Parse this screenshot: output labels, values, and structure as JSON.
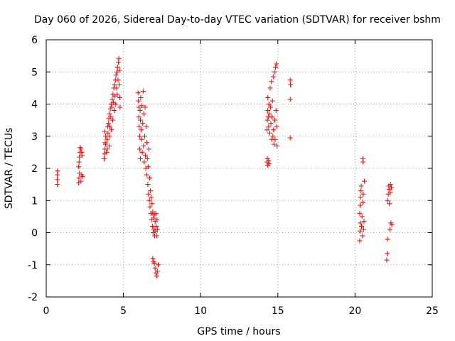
{
  "chart_data": {
    "type": "scatter",
    "title": "Day 060 of 2026, Sidereal Day-to-day VTEC variation (SDTVAR) for receiver bshm",
    "xlabel": "GPS time / hours",
    "ylabel": "SDTVAR / TECUs",
    "xlim": [
      0,
      25
    ],
    "ylim": [
      -2,
      6
    ],
    "x_ticks": [
      0,
      5,
      10,
      15,
      20,
      25
    ],
    "y_ticks": [
      -2,
      -1,
      0,
      1,
      2,
      3,
      4,
      5,
      6
    ],
    "x_tick_labels": [
      "0",
      "5",
      "10",
      "15",
      "20",
      "25"
    ],
    "y_tick_labels": [
      "-2",
      "-1",
      "0",
      "1",
      "2",
      "3",
      "4",
      "5",
      "6"
    ],
    "grid": true,
    "marker": "+",
    "color": "#ff0000",
    "series": [
      {
        "name": "SDTVAR",
        "points": [
          [
            0.72,
            1.5
          ],
          [
            0.72,
            1.65
          ],
          [
            0.72,
            1.8
          ],
          [
            0.73,
            1.92
          ],
          [
            2.1,
            1.55
          ],
          [
            2.12,
            1.7
          ],
          [
            2.15,
            1.85
          ],
          [
            2.1,
            2.05
          ],
          [
            2.13,
            2.2
          ],
          [
            2.15,
            2.35
          ],
          [
            2.18,
            2.5
          ],
          [
            2.2,
            2.65
          ],
          [
            2.25,
            2.6
          ],
          [
            2.3,
            2.5
          ],
          [
            2.32,
            2.4
          ],
          [
            2.35,
            1.75
          ],
          [
            2.3,
            1.8
          ],
          [
            2.25,
            1.6
          ],
          [
            3.75,
            2.3
          ],
          [
            3.78,
            2.45
          ],
          [
            3.8,
            2.6
          ],
          [
            3.82,
            2.8
          ],
          [
            3.85,
            3.0
          ],
          [
            3.78,
            3.15
          ],
          [
            3.85,
            2.75
          ],
          [
            3.9,
            2.5
          ],
          [
            3.95,
            2.6
          ],
          [
            3.95,
            2.9
          ],
          [
            3.98,
            3.3
          ],
          [
            4.0,
            3.1
          ],
          [
            4.02,
            3.4
          ],
          [
            4.05,
            3.55
          ],
          [
            4.08,
            2.7
          ],
          [
            4.1,
            3.0
          ],
          [
            4.1,
            3.7
          ],
          [
            4.12,
            3.3
          ],
          [
            4.15,
            3.85
          ],
          [
            4.18,
            3.6
          ],
          [
            4.2,
            4.0
          ],
          [
            4.22,
            3.2
          ],
          [
            4.25,
            3.9
          ],
          [
            4.28,
            4.15
          ],
          [
            4.3,
            3.5
          ],
          [
            4.32,
            4.3
          ],
          [
            4.35,
            4.05
          ],
          [
            4.38,
            4.5
          ],
          [
            4.4,
            3.8
          ],
          [
            4.42,
            4.6
          ],
          [
            4.45,
            4.25
          ],
          [
            4.48,
            4.75
          ],
          [
            4.5,
            4.0
          ],
          [
            4.52,
            4.9
          ],
          [
            4.55,
            4.5
          ],
          [
            4.58,
            5.0
          ],
          [
            4.6,
            4.3
          ],
          [
            4.62,
            5.15
          ],
          [
            4.65,
            4.75
          ],
          [
            4.68,
            5.3
          ],
          [
            4.7,
            5.42
          ],
          [
            4.72,
            4.6
          ],
          [
            4.74,
            5.05
          ],
          [
            4.76,
            4.2
          ],
          [
            4.78,
            3.9
          ],
          [
            5.95,
            4.35
          ],
          [
            5.97,
            4.1
          ],
          [
            6.0,
            3.9
          ],
          [
            6.0,
            3.6
          ],
          [
            6.02,
            3.3
          ],
          [
            6.05,
            3.0
          ],
          [
            6.05,
            2.6
          ],
          [
            6.08,
            3.8
          ],
          [
            6.1,
            2.3
          ],
          [
            6.1,
            3.5
          ],
          [
            6.12,
            4.2
          ],
          [
            6.15,
            3.2
          ],
          [
            6.18,
            2.9
          ],
          [
            6.2,
            3.95
          ],
          [
            6.22,
            2.5
          ],
          [
            6.25,
            3.4
          ],
          [
            6.28,
            4.4
          ],
          [
            6.3,
            2.7
          ],
          [
            6.32,
            3.7
          ],
          [
            6.35,
            2.2
          ],
          [
            6.38,
            3.0
          ],
          [
            6.4,
            3.9
          ],
          [
            6.42,
            2.4
          ],
          [
            6.45,
            2.0
          ],
          [
            6.48,
            3.3
          ],
          [
            6.5,
            1.8
          ],
          [
            6.52,
            2.8
          ],
          [
            6.55,
            2.3
          ],
          [
            6.58,
            1.5
          ],
          [
            6.6,
            2.05
          ],
          [
            6.62,
            1.2
          ],
          [
            6.65,
            2.6
          ],
          [
            6.68,
            1.0
          ],
          [
            6.7,
            1.7
          ],
          [
            6.72,
            0.8
          ],
          [
            6.75,
            1.3
          ],
          [
            6.78,
            0.6
          ],
          [
            6.8,
            1.1
          ],
          [
            6.82,
            0.4
          ],
          [
            6.85,
            0.9
          ],
          [
            6.88,
            0.2
          ],
          [
            6.9,
            0.65
          ],
          [
            6.92,
            0.0
          ],
          [
            6.95,
            0.45
          ],
          [
            6.98,
            0.1
          ],
          [
            7.0,
            0.55
          ],
          [
            7.02,
            -0.1
          ],
          [
            7.05,
            0.35
          ],
          [
            7.08,
            0.05
          ],
          [
            7.1,
            0.6
          ],
          [
            7.12,
            0.2
          ],
          [
            7.15,
            -0.1
          ],
          [
            7.18,
            0.4
          ],
          [
            7.2,
            0.1
          ],
          [
            6.9,
            -0.8
          ],
          [
            6.95,
            -0.9
          ],
          [
            7.0,
            -0.95
          ],
          [
            7.05,
            -1.1
          ],
          [
            7.1,
            -1.25
          ],
          [
            7.15,
            -1.35
          ],
          [
            7.2,
            -1.2
          ],
          [
            7.25,
            -1.0
          ],
          [
            14.3,
            2.2
          ],
          [
            14.32,
            2.3
          ],
          [
            14.35,
            2.1
          ],
          [
            14.4,
            2.25
          ],
          [
            14.42,
            2.15
          ],
          [
            14.3,
            3.2
          ],
          [
            14.32,
            3.5
          ],
          [
            14.35,
            3.8
          ],
          [
            14.35,
            4.2
          ],
          [
            14.38,
            3.6
          ],
          [
            14.4,
            3.3
          ],
          [
            14.42,
            4.0
          ],
          [
            14.45,
            3.7
          ],
          [
            14.48,
            3.1
          ],
          [
            14.5,
            4.5
          ],
          [
            14.52,
            3.9
          ],
          [
            14.55,
            3.4
          ],
          [
            14.58,
            4.7
          ],
          [
            14.6,
            2.9
          ],
          [
            14.62,
            3.6
          ],
          [
            14.65,
            4.1
          ],
          [
            14.68,
            3.0
          ],
          [
            14.7,
            4.85
          ],
          [
            14.72,
            3.2
          ],
          [
            14.75,
            2.75
          ],
          [
            14.78,
            5.0
          ],
          [
            14.8,
            3.5
          ],
          [
            14.82,
            2.9
          ],
          [
            14.85,
            5.15
          ],
          [
            14.88,
            3.8
          ],
          [
            14.9,
            5.25
          ],
          [
            14.92,
            3.3
          ],
          [
            14.95,
            2.7
          ],
          [
            15.8,
            4.75
          ],
          [
            15.82,
            4.6
          ],
          [
            15.8,
            4.15
          ],
          [
            15.8,
            2.95
          ],
          [
            20.3,
            -0.25
          ],
          [
            20.32,
            0.05
          ],
          [
            20.35,
            0.3
          ],
          [
            20.3,
            0.6
          ],
          [
            20.33,
            0.85
          ],
          [
            20.35,
            1.1
          ],
          [
            20.38,
            1.3
          ],
          [
            20.4,
            1.45
          ],
          [
            20.42,
            0.2
          ],
          [
            20.45,
            0.5
          ],
          [
            20.48,
            -0.1
          ],
          [
            20.5,
            0.95
          ],
          [
            20.52,
            1.2
          ],
          [
            20.55,
            0.1
          ],
          [
            20.58,
            0.35
          ],
          [
            20.6,
            1.6
          ],
          [
            20.5,
            2.3
          ],
          [
            20.52,
            2.2
          ],
          [
            22.05,
            -0.85
          ],
          [
            22.08,
            -0.65
          ],
          [
            22.1,
            -0.2
          ],
          [
            22.12,
            1.0
          ],
          [
            22.15,
            1.2
          ],
          [
            22.18,
            1.45
          ],
          [
            22.2,
            1.35
          ],
          [
            22.22,
            0.9
          ],
          [
            22.25,
            0.1
          ],
          [
            22.28,
            1.25
          ],
          [
            22.3,
            1.5
          ],
          [
            22.32,
            0.3
          ],
          [
            22.35,
            1.4
          ],
          [
            22.38,
            0.25
          ]
        ]
      }
    ]
  }
}
